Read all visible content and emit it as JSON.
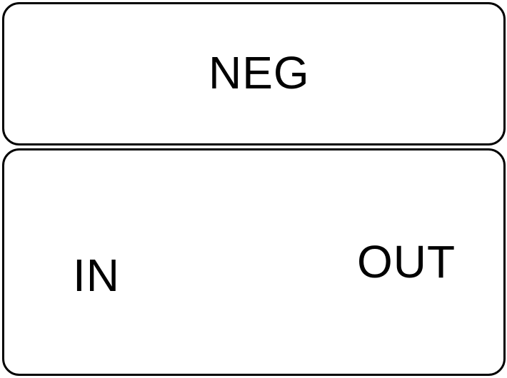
{
  "diagram": {
    "top_block": {
      "label": "NEG"
    },
    "bottom_block": {
      "input_label": "IN",
      "output_label": "OUT"
    }
  },
  "colors": {
    "stroke": "#000000",
    "background": "#ffffff",
    "text": "#000000"
  }
}
